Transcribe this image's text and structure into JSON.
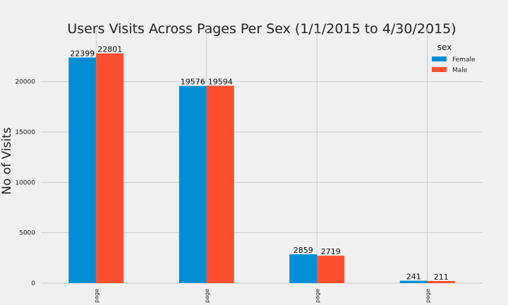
{
  "chart_data": {
    "type": "bar",
    "title": "Users Visits Across Pages Per Sex (1/1/2015 to 4/30/2015)",
    "xlabel": "",
    "ylabel": "No of Visits",
    "categories": [
      "page",
      "page",
      "page",
      "page"
    ],
    "series": [
      {
        "name": "Female",
        "values": [
          22399,
          19576,
          2859,
          241
        ],
        "color": "#008fd5"
      },
      {
        "name": "Male",
        "values": [
          22801,
          19594,
          2719,
          211
        ],
        "color": "#fc4f30"
      }
    ],
    "ylim": [
      0,
      23900
    ],
    "yticks": [
      0,
      5000,
      10000,
      15000,
      20000
    ],
    "grid": true,
    "legend": {
      "title": "sex",
      "placement": "top-right"
    },
    "data_labels": true
  }
}
